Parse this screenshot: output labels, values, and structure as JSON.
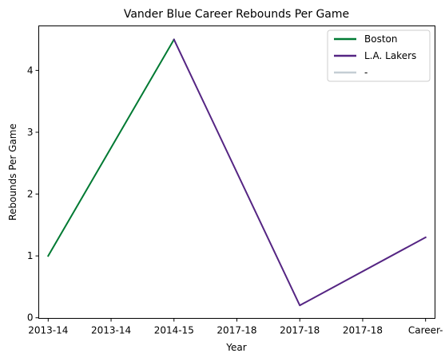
{
  "chart_data": {
    "type": "line",
    "title": "Vander Blue Career Rebounds Per Game",
    "xlabel": "Year",
    "ylabel": "Rebounds Per Game",
    "categories": [
      "2013-14",
      "2013-14",
      "2014-15",
      "2017-18",
      "2017-18",
      "2017-18",
      "Career-"
    ],
    "ylim": [
      -0.01,
      4.72
    ],
    "yticks": [
      0,
      1,
      2,
      3,
      4
    ],
    "grid": false,
    "legend_position": "top-right",
    "series": [
      {
        "name": "Boston",
        "color": "#007A33",
        "points": [
          [
            0,
            1.0
          ],
          [
            2,
            4.5
          ]
        ]
      },
      {
        "name": "L.A. Lakers",
        "color": "#552583",
        "points": [
          [
            2,
            4.5
          ],
          [
            4,
            0.2
          ],
          [
            6,
            1.3
          ]
        ]
      },
      {
        "name": "-",
        "color": "#C4CED4",
        "points": []
      }
    ]
  }
}
